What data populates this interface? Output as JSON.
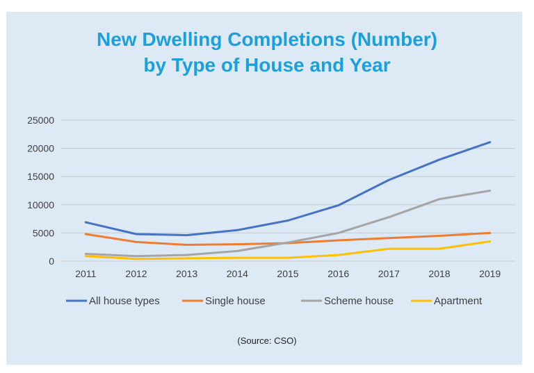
{
  "chart_data": {
    "type": "line",
    "title_lines": [
      "New Dwelling Completions (Number)",
      "by Type of House and Year"
    ],
    "categories": [
      "2011",
      "2012",
      "2013",
      "2014",
      "2015",
      "2016",
      "2017",
      "2018",
      "2019"
    ],
    "y_ticks": [
      "0",
      "5000",
      "10000",
      "15000",
      "20000",
      "25000"
    ],
    "ylim": [
      0,
      25000
    ],
    "grid": true,
    "legend_position": "bottom",
    "series": [
      {
        "name": "All house types",
        "color": "#4472c4",
        "values": [
          6900,
          4800,
          4600,
          5500,
          7200,
          9900,
          14400,
          18000,
          21100
        ]
      },
      {
        "name": "Single house",
        "color": "#ed7d31",
        "values": [
          4800,
          3400,
          2900,
          3000,
          3200,
          3700,
          4100,
          4500,
          5000
        ]
      },
      {
        "name": "Scheme house",
        "color": "#a5a5a5",
        "values": [
          1300,
          900,
          1100,
          1800,
          3300,
          5000,
          7800,
          11000,
          12500
        ]
      },
      {
        "name": "Apartment",
        "color": "#ffc000",
        "values": [
          900,
          400,
          500,
          600,
          600,
          1100,
          2200,
          2200,
          3500
        ]
      }
    ],
    "source": "(Source: CSO)"
  }
}
